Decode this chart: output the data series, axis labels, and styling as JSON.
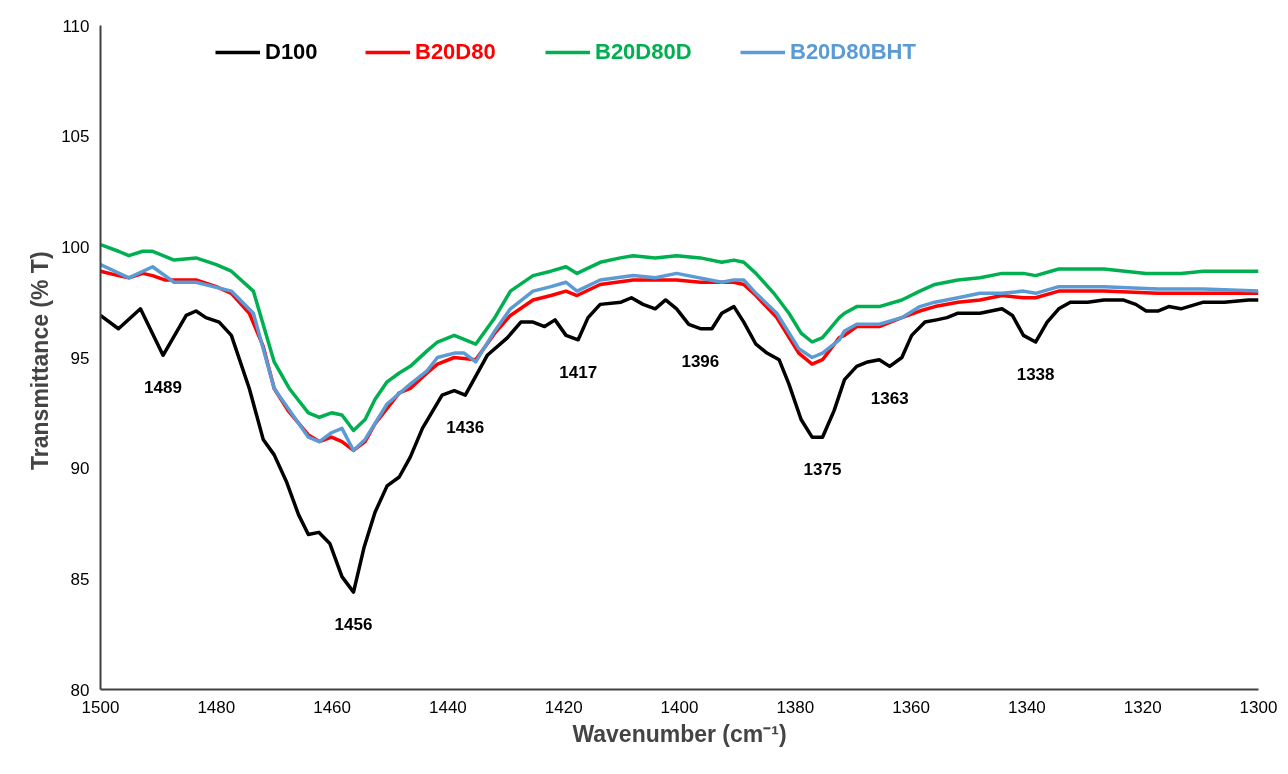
{
  "chart_data": {
    "type": "line",
    "xlabel": "Wavenumber (cm⁻¹)",
    "ylabel": "Transmittance  (% T)",
    "xlim": [
      1500,
      1300
    ],
    "xticks": [
      1500,
      1480,
      1460,
      1440,
      1420,
      1400,
      1380,
      1360,
      1340,
      1320,
      1300
    ],
    "ylim": [
      80,
      110
    ],
    "yticks": [
      80,
      85,
      90,
      95,
      100,
      105,
      110
    ],
    "grid": false,
    "legend": "top",
    "marker": "none",
    "line_style": "solid",
    "series": [
      {
        "name": "D100",
        "color": "#000000",
        "x": [
          1500,
          1496.9,
          1493.1,
          1489.2,
          1485.2,
          1483.5,
          1481.8,
          1479.5,
          1477.4,
          1474.3,
          1471.9,
          1470,
          1467.9,
          1465.8,
          1464.1,
          1462.3,
          1460.4,
          1458.3,
          1456.3,
          1454.5,
          1452.6,
          1450.5,
          1448.4,
          1446.5,
          1444.4,
          1441,
          1438.9,
          1437,
          1433.2,
          1429.7,
          1427.4,
          1425.3,
          1423.3,
          1421.5,
          1419.6,
          1417.5,
          1415.8,
          1413.7,
          1410.1,
          1408.3,
          1406.3,
          1404.2,
          1402.4,
          1400.5,
          1398.4,
          1396.4,
          1394.4,
          1392.7,
          1390.6,
          1388.9,
          1386.8,
          1384.9,
          1382.8,
          1381.1,
          1379,
          1377.1,
          1375.3,
          1373.3,
          1371.5,
          1369.4,
          1367.5,
          1365.5,
          1363.7,
          1361.6,
          1359.9,
          1357.6,
          1355.6,
          1353.8,
          1351.9,
          1349.8,
          1348.1,
          1344.3,
          1342.5,
          1340.6,
          1338.5,
          1336.5,
          1334.5,
          1332.5,
          1329.5,
          1326.7,
          1323.4,
          1321.2,
          1319.4,
          1317.4,
          1315.5,
          1313.4,
          1309.5,
          1305.9,
          1301.7,
          1300
        ],
        "values": [
          96.9,
          96.3,
          97.2,
          95.1,
          96.9,
          97.1,
          96.8,
          96.6,
          96.0,
          93.6,
          91.3,
          90.6,
          89.4,
          87.9,
          87.0,
          87.1,
          86.6,
          85.1,
          84.4,
          86.4,
          88.0,
          89.2,
          89.6,
          90.5,
          91.8,
          93.3,
          93.5,
          93.3,
          95.1,
          95.9,
          96.6,
          96.6,
          96.4,
          96.7,
          96.0,
          95.8,
          96.8,
          97.4,
          97.5,
          97.7,
          97.4,
          97.2,
          97.6,
          97.2,
          96.5,
          96.3,
          96.3,
          97.0,
          97.3,
          96.6,
          95.6,
          95.2,
          94.9,
          93.8,
          92.2,
          91.4,
          91.4,
          92.6,
          94.0,
          94.6,
          94.8,
          94.9,
          94.6,
          95.0,
          96.0,
          96.6,
          96.7,
          96.8,
          97.0,
          97.0,
          97.0,
          97.2,
          96.9,
          96.0,
          95.7,
          96.6,
          97.2,
          97.5,
          97.5,
          97.6,
          97.6,
          97.4,
          97.1,
          97.1,
          97.3,
          97.2,
          97.5,
          97.5,
          97.6,
          97.6
        ]
      },
      {
        "name": "B20D80",
        "color": "#ff0000",
        "x": [
          1500,
          1496.9,
          1495.1,
          1492.7,
          1491,
          1488.8,
          1485.2,
          1483.5,
          1480,
          1477.4,
          1474.3,
          1471.9,
          1470,
          1467.6,
          1464.1,
          1462.2,
          1460.1,
          1458.3,
          1456.3,
          1454.3,
          1452.6,
          1450.5,
          1448.4,
          1446.5,
          1443.6,
          1441.8,
          1438.9,
          1435.2,
          1431.9,
          1429.2,
          1425.3,
          1422.2,
          1419.6,
          1417.7,
          1413.7,
          1408,
          1400.5,
          1396.4,
          1390.6,
          1388.9,
          1386.8,
          1383.2,
          1379.4,
          1377.1,
          1375.3,
          1372.4,
          1371.5,
          1369.4,
          1365.5,
          1361.6,
          1358.5,
          1355.9,
          1351.9,
          1348.1,
          1344.3,
          1340.6,
          1338.5,
          1334.5,
          1326.7,
          1317.4,
          1309.5,
          1300
        ],
        "values": [
          98.9,
          98.7,
          98.6,
          98.8,
          98.7,
          98.5,
          98.5,
          98.5,
          98.2,
          97.9,
          97.0,
          95.5,
          93.6,
          92.6,
          91.5,
          91.2,
          91.4,
          91.2,
          90.8,
          91.2,
          92.0,
          92.7,
          93.4,
          93.6,
          94.3,
          94.7,
          95.0,
          94.9,
          96.1,
          96.9,
          97.6,
          97.8,
          98.0,
          97.8,
          98.3,
          98.5,
          98.5,
          98.4,
          98.4,
          98.3,
          97.8,
          96.8,
          95.2,
          94.7,
          94.9,
          95.9,
          96.0,
          96.4,
          96.4,
          96.8,
          97.1,
          97.3,
          97.5,
          97.6,
          97.8,
          97.7,
          97.7,
          98.0,
          98.0,
          97.9,
          97.9,
          97.9
        ]
      },
      {
        "name": "B20D80D",
        "color": "#00b050",
        "x": [
          1500,
          1496.9,
          1495.1,
          1492.7,
          1491,
          1487.3,
          1483.5,
          1480,
          1477.4,
          1473.6,
          1470,
          1467.4,
          1464.1,
          1462.2,
          1460.1,
          1458.3,
          1456.3,
          1454.3,
          1452.6,
          1450.5,
          1448.4,
          1446.5,
          1443.6,
          1441.8,
          1438.9,
          1435.2,
          1431.9,
          1429.2,
          1425.3,
          1422.2,
          1419.6,
          1417.7,
          1413.7,
          1410.2,
          1408,
          1404.2,
          1400.5,
          1396.4,
          1392.7,
          1390.6,
          1388.9,
          1386.8,
          1383.7,
          1381.1,
          1379,
          1377.1,
          1375.3,
          1372.4,
          1371.5,
          1369.4,
          1365.5,
          1361.6,
          1358.5,
          1355.9,
          1351.9,
          1348.1,
          1344.3,
          1340.6,
          1338.5,
          1334.5,
          1332.5,
          1326.7,
          1319.4,
          1313.4,
          1309.5,
          1300
        ],
        "values": [
          100.1,
          99.8,
          99.6,
          99.8,
          99.8,
          99.4,
          99.5,
          99.2,
          98.9,
          98.0,
          94.8,
          93.6,
          92.5,
          92.3,
          92.5,
          92.4,
          91.7,
          92.2,
          93.1,
          93.9,
          94.3,
          94.6,
          95.3,
          95.7,
          96.0,
          95.6,
          96.8,
          98.0,
          98.7,
          98.9,
          99.1,
          98.8,
          99.3,
          99.5,
          99.6,
          99.5,
          99.6,
          99.5,
          99.3,
          99.4,
          99.3,
          98.8,
          97.9,
          97.0,
          96.1,
          95.7,
          95.9,
          96.8,
          97.0,
          97.3,
          97.3,
          97.6,
          98.0,
          98.3,
          98.5,
          98.6,
          98.8,
          98.8,
          98.7,
          99.0,
          99.0,
          99.0,
          98.8,
          98.8,
          98.9,
          98.9
        ]
      },
      {
        "name": "B20D80BHT",
        "color": "#5b9bd5",
        "x": [
          1500,
          1495.1,
          1491,
          1487.3,
          1483.5,
          1477.4,
          1473.6,
          1470,
          1464.1,
          1462.2,
          1460.1,
          1458.3,
          1456.3,
          1454.3,
          1450.5,
          1446.5,
          1443.6,
          1441.8,
          1438.9,
          1437.2,
          1435.2,
          1431.9,
          1429.2,
          1425.3,
          1422.2,
          1419.6,
          1417.7,
          1413.7,
          1408,
          1404.2,
          1400.5,
          1392.7,
          1390.6,
          1388.9,
          1386.8,
          1383.2,
          1379.4,
          1377.1,
          1375.3,
          1372.4,
          1371.5,
          1369.4,
          1365.5,
          1361.6,
          1358.5,
          1355.9,
          1351.9,
          1348.1,
          1344.3,
          1340.6,
          1338.5,
          1334.5,
          1326.7,
          1317.4,
          1309.5,
          1300
        ],
        "values": [
          99.2,
          98.6,
          99.1,
          98.4,
          98.4,
          98.0,
          97.0,
          93.6,
          91.4,
          91.2,
          91.6,
          91.8,
          90.8,
          91.3,
          92.9,
          93.8,
          94.4,
          95.0,
          95.2,
          95.2,
          94.8,
          96.2,
          97.2,
          98.0,
          98.2,
          98.4,
          98.0,
          98.5,
          98.7,
          98.6,
          98.8,
          98.4,
          98.5,
          98.5,
          97.9,
          97.0,
          95.4,
          95.0,
          95.2,
          95.8,
          96.2,
          96.5,
          96.5,
          96.8,
          97.3,
          97.5,
          97.7,
          97.9,
          97.9,
          98.0,
          97.9,
          98.2,
          98.2,
          98.1,
          98.1,
          98.0
        ]
      }
    ],
    "annotations": [
      {
        "text": "1489",
        "x": 1489.2,
        "y": 95.1
      },
      {
        "text": "1456",
        "x": 1456.3,
        "y": 84.4
      },
      {
        "text": "1436",
        "x": 1437,
        "y": 93.3
      },
      {
        "text": "1417",
        "x": 1417.5,
        "y": 95.8
      },
      {
        "text": "1396",
        "x": 1396.4,
        "y": 96.3
      },
      {
        "text": "1375",
        "x": 1375.3,
        "y": 91.4
      },
      {
        "text": "1363",
        "x": 1363.7,
        "y": 94.6
      },
      {
        "text": "1338",
        "x": 1338.5,
        "y": 95.7
      }
    ]
  }
}
